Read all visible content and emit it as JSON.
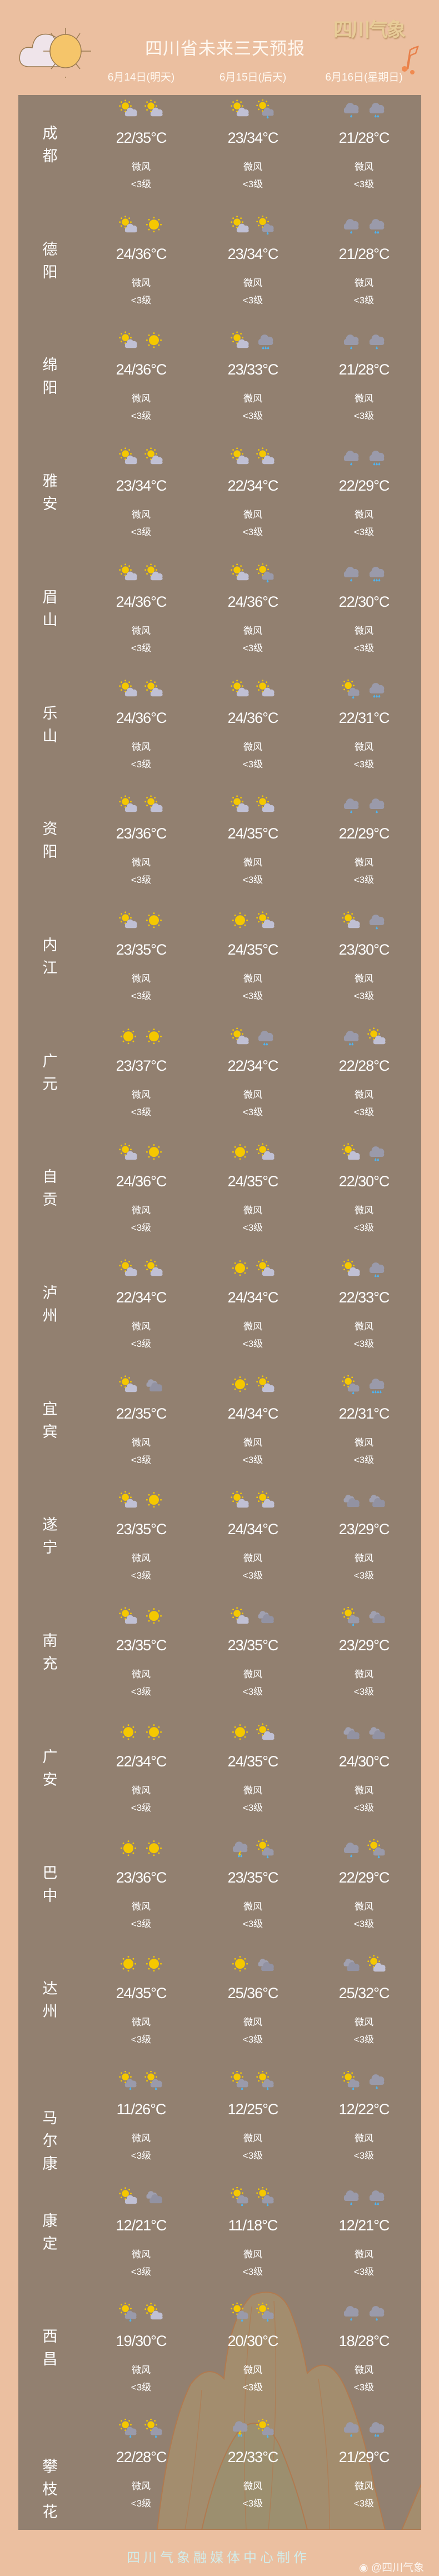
{
  "header": {
    "title": "四川省未来三天预报",
    "logo_text": "四川气象",
    "dates": [
      "6月14日(明天)",
      "6月15日(后天)",
      "6月16日(星期日)"
    ]
  },
  "colors": {
    "background": "#ebbfa0",
    "panel": "#928070",
    "sun": "#f5c800",
    "cloud": "#c0c0d4",
    "rain_cloud": "#9a9aaa",
    "drop": "#4fb3f0"
  },
  "rows": [
    {
      "city": "成都",
      "days": [
        {
          "icons": [
            "partly-cloudy",
            "partly-cloudy"
          ],
          "temp": "22/35°C",
          "wind": "微风",
          "level": "<3级"
        },
        {
          "icons": [
            "partly-cloudy",
            "shower"
          ],
          "temp": "23/34°C",
          "wind": "微风",
          "level": "<3级"
        },
        {
          "icons": [
            "light-rain",
            "moderate-rain"
          ],
          "temp": "21/28°C",
          "wind": "微风",
          "level": "<3级"
        }
      ]
    },
    {
      "city": "德阳",
      "days": [
        {
          "icons": [
            "partly-cloudy",
            "sunny"
          ],
          "temp": "24/36°C",
          "wind": "微风",
          "level": "<3级"
        },
        {
          "icons": [
            "partly-cloudy",
            "shower"
          ],
          "temp": "23/34°C",
          "wind": "微风",
          "level": "<3级"
        },
        {
          "icons": [
            "light-rain",
            "moderate-rain"
          ],
          "temp": "21/28°C",
          "wind": "微风",
          "level": "<3级"
        }
      ]
    },
    {
      "city": "绵阳",
      "days": [
        {
          "icons": [
            "partly-cloudy",
            "sunny"
          ],
          "temp": "24/36°C",
          "wind": "微风",
          "level": "<3级"
        },
        {
          "icons": [
            "partly-cloudy",
            "heavy-rain"
          ],
          "temp": "23/33°C",
          "wind": "微风",
          "level": "<3级"
        },
        {
          "icons": [
            "light-rain",
            "light-rain"
          ],
          "temp": "21/28°C",
          "wind": "微风",
          "level": "<3级"
        }
      ]
    },
    {
      "city": "雅安",
      "days": [
        {
          "icons": [
            "partly-cloudy",
            "partly-cloudy"
          ],
          "temp": "23/34°C",
          "wind": "微风",
          "level": "<3级"
        },
        {
          "icons": [
            "partly-cloudy",
            "partly-cloudy"
          ],
          "temp": "22/34°C",
          "wind": "微风",
          "level": "<3级"
        },
        {
          "icons": [
            "light-rain",
            "heavy-rain"
          ],
          "temp": "22/29°C",
          "wind": "微风",
          "level": "<3级"
        }
      ]
    },
    {
      "city": "眉山",
      "days": [
        {
          "icons": [
            "partly-cloudy",
            "partly-cloudy"
          ],
          "temp": "24/36°C",
          "wind": "微风",
          "level": "<3级"
        },
        {
          "icons": [
            "partly-cloudy",
            "shower"
          ],
          "temp": "24/36°C",
          "wind": "微风",
          "level": "<3级"
        },
        {
          "icons": [
            "light-rain",
            "heavy-rain"
          ],
          "temp": "22/30°C",
          "wind": "微风",
          "level": "<3级"
        }
      ]
    },
    {
      "city": "乐山",
      "days": [
        {
          "icons": [
            "partly-cloudy",
            "partly-cloudy"
          ],
          "temp": "24/36°C",
          "wind": "微风",
          "level": "<3级"
        },
        {
          "icons": [
            "partly-cloudy",
            "partly-cloudy"
          ],
          "temp": "24/36°C",
          "wind": "微风",
          "level": "<3级"
        },
        {
          "icons": [
            "shower",
            "heavy-rain"
          ],
          "temp": "22/31°C",
          "wind": "微风",
          "level": "<3级"
        }
      ]
    },
    {
      "city": "资阳",
      "days": [
        {
          "icons": [
            "partly-cloudy",
            "partly-cloudy"
          ],
          "temp": "23/36°C",
          "wind": "微风",
          "level": "<3级"
        },
        {
          "icons": [
            "partly-cloudy",
            "partly-cloudy"
          ],
          "temp": "24/35°C",
          "wind": "微风",
          "level": "<3级"
        },
        {
          "icons": [
            "light-rain",
            "light-rain"
          ],
          "temp": "22/29°C",
          "wind": "微风",
          "level": "<3级"
        }
      ]
    },
    {
      "city": "内江",
      "days": [
        {
          "icons": [
            "partly-cloudy",
            "sunny"
          ],
          "temp": "23/35°C",
          "wind": "微风",
          "level": "<3级"
        },
        {
          "icons": [
            "sunny",
            "partly-cloudy"
          ],
          "temp": "24/35°C",
          "wind": "微风",
          "level": "<3级"
        },
        {
          "icons": [
            "partly-cloudy",
            "light-rain"
          ],
          "temp": "23/30°C",
          "wind": "微风",
          "level": "<3级"
        }
      ]
    },
    {
      "city": "广元",
      "days": [
        {
          "icons": [
            "sunny",
            "sunny"
          ],
          "temp": "23/37°C",
          "wind": "微风",
          "level": "<3级"
        },
        {
          "icons": [
            "partly-cloudy",
            "moderate-rain"
          ],
          "temp": "22/34°C",
          "wind": "微风",
          "level": "<3级"
        },
        {
          "icons": [
            "moderate-rain",
            "partly-cloudy"
          ],
          "temp": "22/28°C",
          "wind": "微风",
          "level": "<3级"
        }
      ]
    },
    {
      "city": "自贡",
      "days": [
        {
          "icons": [
            "partly-cloudy",
            "sunny"
          ],
          "temp": "24/36°C",
          "wind": "微风",
          "level": "<3级"
        },
        {
          "icons": [
            "sunny",
            "partly-cloudy"
          ],
          "temp": "24/35°C",
          "wind": "微风",
          "level": "<3级"
        },
        {
          "icons": [
            "partly-cloudy",
            "moderate-rain"
          ],
          "temp": "22/30°C",
          "wind": "微风",
          "level": "<3级"
        }
      ]
    },
    {
      "city": "泸州",
      "days": [
        {
          "icons": [
            "partly-cloudy",
            "partly-cloudy"
          ],
          "temp": "22/34°C",
          "wind": "微风",
          "level": "<3级"
        },
        {
          "icons": [
            "sunny",
            "partly-cloudy"
          ],
          "temp": "24/34°C",
          "wind": "微风",
          "level": "<3级"
        },
        {
          "icons": [
            "partly-cloudy",
            "moderate-rain"
          ],
          "temp": "22/33°C",
          "wind": "微风",
          "level": "<3级"
        }
      ]
    },
    {
      "city": "宜宾",
      "days": [
        {
          "icons": [
            "partly-cloudy",
            "overcast"
          ],
          "temp": "22/35°C",
          "wind": "微风",
          "level": "<3级"
        },
        {
          "icons": [
            "sunny",
            "partly-cloudy"
          ],
          "temp": "24/34°C",
          "wind": "微风",
          "level": "<3级"
        },
        {
          "icons": [
            "shower",
            "rainstorm"
          ],
          "temp": "22/31°C",
          "wind": "微风",
          "level": "<3级"
        }
      ]
    },
    {
      "city": "遂宁",
      "days": [
        {
          "icons": [
            "partly-cloudy",
            "sunny"
          ],
          "temp": "23/35°C",
          "wind": "微风",
          "level": "<3级"
        },
        {
          "icons": [
            "partly-cloudy",
            "partly-cloudy"
          ],
          "temp": "24/34°C",
          "wind": "微风",
          "level": "<3级"
        },
        {
          "icons": [
            "overcast",
            "overcast"
          ],
          "temp": "23/29°C",
          "wind": "微风",
          "level": "<3级"
        }
      ]
    },
    {
      "city": "南充",
      "days": [
        {
          "icons": [
            "partly-cloudy",
            "sunny"
          ],
          "temp": "23/35°C",
          "wind": "微风",
          "level": "<3级"
        },
        {
          "icons": [
            "partly-cloudy",
            "overcast"
          ],
          "temp": "23/35°C",
          "wind": "微风",
          "level": "<3级"
        },
        {
          "icons": [
            "shower",
            "overcast"
          ],
          "temp": "23/29°C",
          "wind": "微风",
          "level": "<3级"
        }
      ]
    },
    {
      "city": "广安",
      "days": [
        {
          "icons": [
            "sunny",
            "sunny"
          ],
          "temp": "22/34°C",
          "wind": "微风",
          "level": "<3级"
        },
        {
          "icons": [
            "sunny",
            "partly-cloudy"
          ],
          "temp": "24/35°C",
          "wind": "微风",
          "level": "<3级"
        },
        {
          "icons": [
            "overcast",
            "overcast"
          ],
          "temp": "24/30°C",
          "wind": "微风",
          "level": "<3级"
        }
      ]
    },
    {
      "city": "巴中",
      "days": [
        {
          "icons": [
            "sunny",
            "sunny"
          ],
          "temp": "23/36°C",
          "wind": "微风",
          "level": "<3级"
        },
        {
          "icons": [
            "thunder-shower",
            "shower"
          ],
          "temp": "23/35°C",
          "wind": "微风",
          "level": "<3级"
        },
        {
          "icons": [
            "light-rain",
            "shower"
          ],
          "temp": "22/29°C",
          "wind": "微风",
          "level": "<3级"
        }
      ]
    },
    {
      "city": "达州",
      "days": [
        {
          "icons": [
            "sunny",
            "sunny"
          ],
          "temp": "24/35°C",
          "wind": "微风",
          "level": "<3级"
        },
        {
          "icons": [
            "sunny",
            "overcast"
          ],
          "temp": "25/36°C",
          "wind": "微风",
          "level": "<3级"
        },
        {
          "icons": [
            "overcast",
            "partly-cloudy"
          ],
          "temp": "25/32°C",
          "wind": "微风",
          "level": "<3级"
        }
      ]
    },
    {
      "city": "马尔康",
      "days": [
        {
          "icons": [
            "shower",
            "shower"
          ],
          "temp": "11/26°C",
          "wind": "微风",
          "level": "<3级"
        },
        {
          "icons": [
            "shower",
            "shower"
          ],
          "temp": "12/25°C",
          "wind": "微风",
          "level": "<3级"
        },
        {
          "icons": [
            "shower",
            "light-rain"
          ],
          "temp": "12/22°C",
          "wind": "微风",
          "level": "<3级"
        }
      ]
    },
    {
      "city": "康定",
      "days": [
        {
          "icons": [
            "partly-cloudy",
            "overcast"
          ],
          "temp": "12/21°C",
          "wind": "微风",
          "level": "<3级"
        },
        {
          "icons": [
            "shower",
            "shower"
          ],
          "temp": "11/18°C",
          "wind": "微风",
          "level": "<3级"
        },
        {
          "icons": [
            "light-rain",
            "moderate-rain"
          ],
          "temp": "12/21°C",
          "wind": "微风",
          "level": "<3级"
        }
      ]
    },
    {
      "city": "西昌",
      "days": [
        {
          "icons": [
            "shower",
            "partly-cloudy"
          ],
          "temp": "19/30°C",
          "wind": "微风",
          "level": "<3级"
        },
        {
          "icons": [
            "shower",
            "shower"
          ],
          "temp": "20/30°C",
          "wind": "微风",
          "level": "<3级"
        },
        {
          "icons": [
            "light-rain",
            "light-rain"
          ],
          "temp": "18/28°C",
          "wind": "微风",
          "level": "<3级"
        }
      ]
    },
    {
      "city": "攀枝花",
      "days": [
        {
          "icons": [
            "shower",
            "shower"
          ],
          "temp": "22/28°C",
          "wind": "微风",
          "level": "<3级"
        },
        {
          "icons": [
            "thunder-shower",
            "shower"
          ],
          "temp": "22/33°C",
          "wind": "微风",
          "level": "<3级"
        },
        {
          "icons": [
            "light-rain",
            "moderate-rain"
          ],
          "temp": "21/29°C",
          "wind": "微风",
          "level": "<3级"
        }
      ]
    }
  ],
  "footer": {
    "credit": "四川气象融媒体中心制作",
    "watermark": "@四川气象"
  }
}
